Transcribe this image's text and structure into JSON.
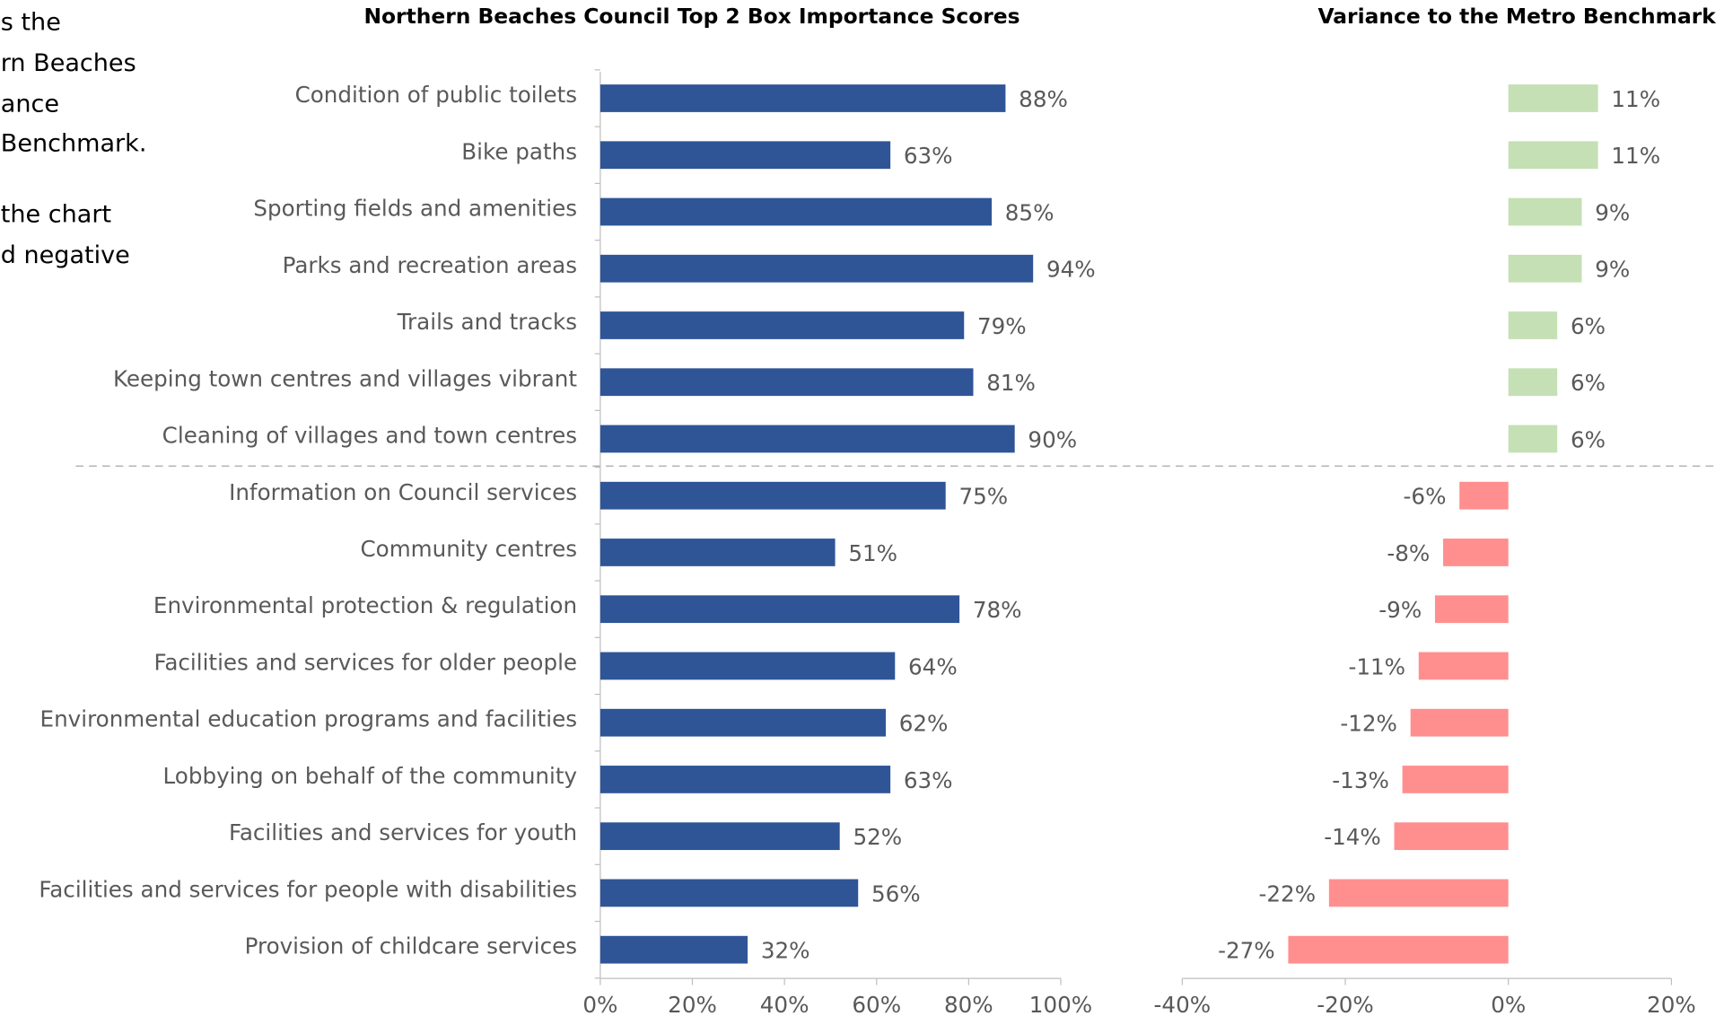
{
  "side_text": [
    "s the",
    "rn Beaches",
    "ance",
    "Benchmark.",
    "the chart",
    "d negative"
  ],
  "chart_data": [
    {
      "type": "hbar",
      "title": "Northern Beaches Council Top 2 Box Importance Scores",
      "categories": [
        "Condition of public toilets",
        "Bike paths",
        "Sporting fields and amenities",
        "Parks and recreation areas",
        "Trails and tracks",
        "Keeping town centres and villages vibrant",
        "Cleaning of villages and town centres",
        "Information on Council services",
        "Community centres",
        "Environmental protection & regulation",
        "Facilities and services for older people",
        "Environmental education programs and facilities",
        "Lobbying on behalf of the community",
        "Facilities and services for youth",
        "Facilities and services for people with disabilities",
        "Provision of childcare services"
      ],
      "values": [
        88,
        63,
        85,
        94,
        79,
        81,
        90,
        75,
        51,
        78,
        64,
        62,
        63,
        52,
        56,
        32
      ],
      "value_labels": [
        "88%",
        "63%",
        "85%",
        "94%",
        "79%",
        "81%",
        "90%",
        "75%",
        "51%",
        "78%",
        "64%",
        "62%",
        "63%",
        "52%",
        "56%",
        "32%"
      ],
      "color": "#2f5597",
      "xlim": [
        0,
        100
      ],
      "xticks": [
        {
          "value": 0,
          "label": "0%"
        },
        {
          "value": 20,
          "label": "20%"
        },
        {
          "value": 40,
          "label": "40%"
        },
        {
          "value": 60,
          "label": "60%"
        },
        {
          "value": 80,
          "label": "80%"
        },
        {
          "value": 100,
          "label": "100%"
        }
      ]
    },
    {
      "type": "hbar",
      "title": "Variance to the Metro Benchmark",
      "values": [
        11,
        11,
        9,
        9,
        6,
        6,
        6,
        -6,
        -8,
        -9,
        -11,
        -12,
        -13,
        -14,
        -22,
        -27
      ],
      "value_labels": [
        "11%",
        "11%",
        "9%",
        "9%",
        "6%",
        "6%",
        "6%",
        "-6%",
        "-8%",
        "-9%",
        "-11%",
        "-12%",
        "-13%",
        "-14%",
        "-22%",
        "-27%"
      ],
      "positive_color": "#c5e0b4",
      "negative_color": "#ff8f8f",
      "xlim": [
        -40,
        20
      ],
      "xticks": [
        {
          "value": -40,
          "label": "-40%"
        },
        {
          "value": -20,
          "label": "-20%"
        },
        {
          "value": 0,
          "label": "0%"
        },
        {
          "value": 20,
          "label": "20%"
        }
      ]
    }
  ]
}
